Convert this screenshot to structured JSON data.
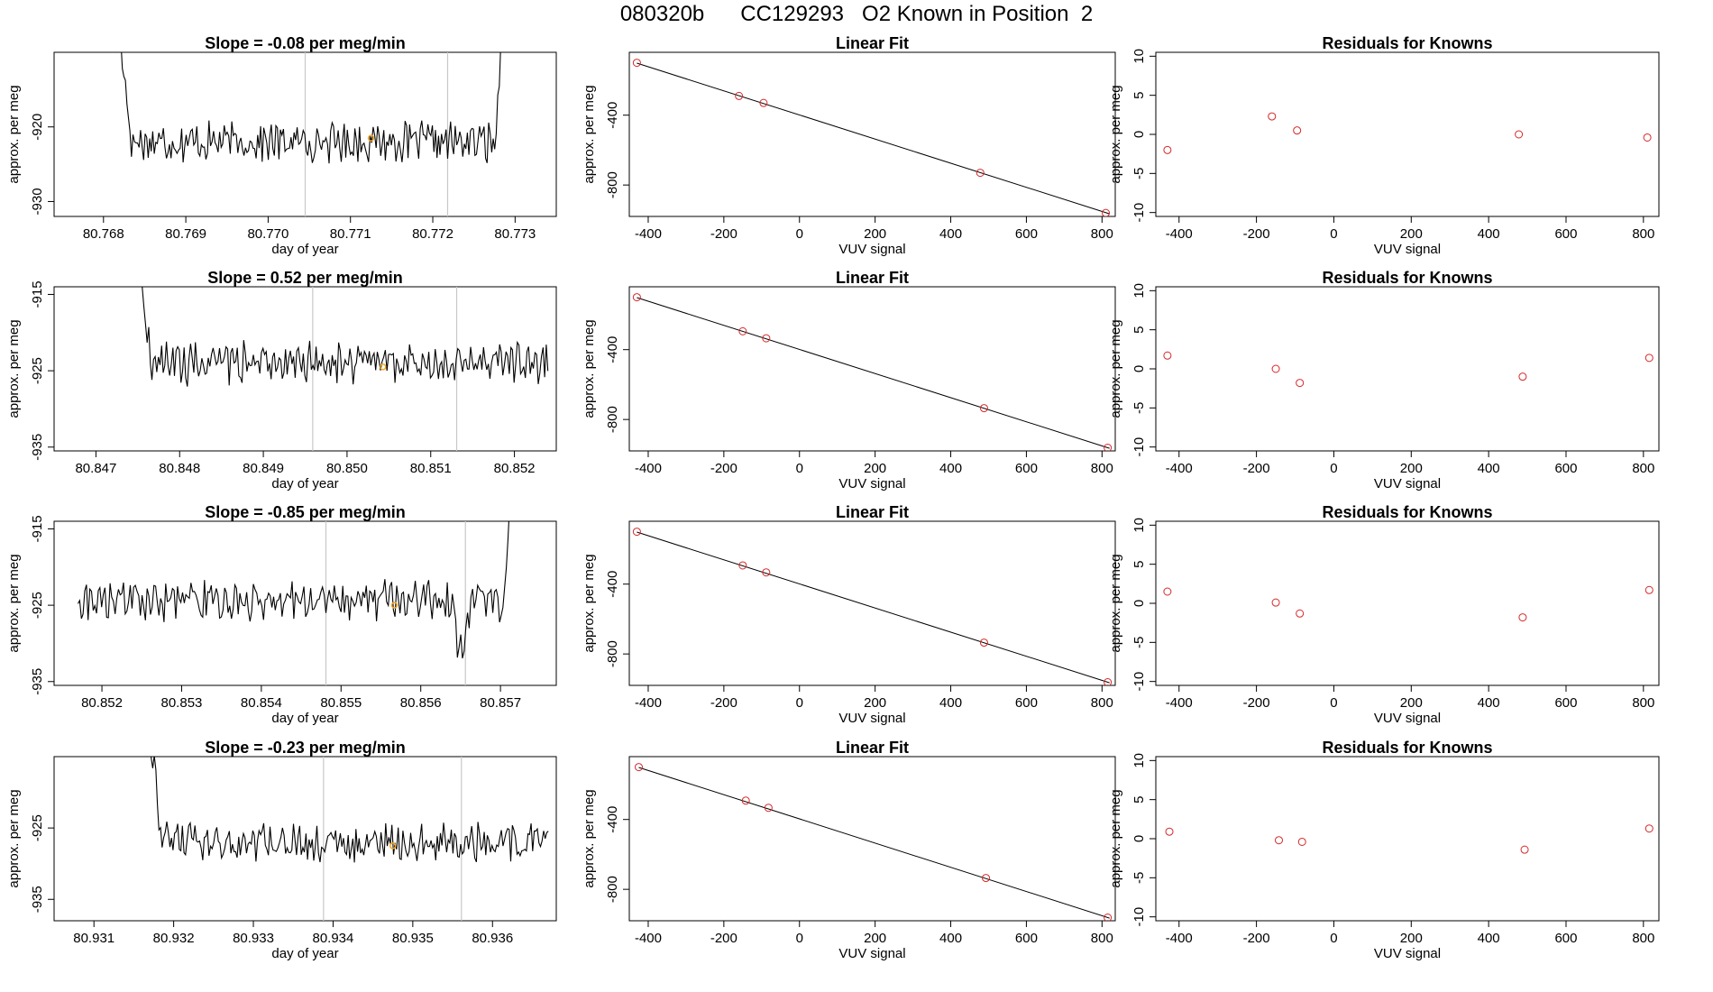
{
  "page": {
    "title": "080320b      CC129293   O2 Known in Position  2"
  },
  "colors": {
    "trace": "#000000",
    "fit_point": "#d62728",
    "highlight_point": "#f5a623",
    "interval_line": "#c8c8c8"
  },
  "chart_data": [
    {
      "type": "line",
      "panel": "time-series",
      "row": 1,
      "title": "Slope =  -0.08  per meg/min",
      "xlabel": "day of year",
      "ylabel": "approx. per meg",
      "x_ticks": [
        "80.768",
        "80.769",
        "80.770",
        "80.771",
        "80.772",
        "80.773"
      ],
      "x_tick_values": [
        80.768,
        80.769,
        80.77,
        80.771,
        80.772,
        80.773
      ],
      "y_ticks": [
        "-920",
        "-930"
      ],
      "y_tick_values": [
        -920,
        -930
      ],
      "xlim": [
        80.7674,
        80.7735
      ],
      "ylim": [
        -932,
        -910
      ],
      "interval_lines_x": [
        80.77045,
        80.77218
      ],
      "trace": {
        "x_start": 80.7681,
        "x_end": 80.7729,
        "level": -922,
        "noise": 2.2,
        "rise_left": true,
        "rise_right": true
      },
      "highlight_point": {
        "x": 80.77125,
        "y": -921.5
      }
    },
    {
      "type": "scatter",
      "panel": "linear-fit",
      "row": 1,
      "title": "Linear Fit",
      "xlabel": "VUV signal",
      "ylabel": "approx. per meg",
      "x_ticks": [
        "-400",
        "-200",
        "0",
        "200",
        "400",
        "600",
        "800"
      ],
      "x_tick_values": [
        -400,
        -200,
        0,
        200,
        400,
        600,
        800
      ],
      "y_ticks": [
        "-400",
        "-800"
      ],
      "y_tick_values": [
        -400,
        -800
      ],
      "xlim": [
        -450,
        835
      ],
      "ylim": [
        -980,
        -40
      ],
      "points": [
        {
          "x": -430,
          "y": -100
        },
        {
          "x": -160,
          "y": -290
        },
        {
          "x": -95,
          "y": -330
        },
        {
          "x": 478,
          "y": -730
        },
        {
          "x": 810,
          "y": -960
        }
      ],
      "fit_line": {
        "x": [
          -430,
          820
        ],
        "y": [
          -102,
          -965
        ]
      }
    },
    {
      "type": "scatter",
      "panel": "residuals",
      "row": 1,
      "title": "Residuals for Knowns",
      "xlabel": "VUV signal",
      "ylabel": "approx. per meg",
      "x_ticks": [
        "-400",
        "-200",
        "0",
        "200",
        "400",
        "600",
        "800"
      ],
      "x_tick_values": [
        -400,
        -200,
        0,
        200,
        400,
        600,
        800
      ],
      "y_ticks": [
        "10",
        "5",
        "0",
        "-5",
        "-10"
      ],
      "y_tick_values": [
        10,
        5,
        0,
        -5,
        -10
      ],
      "xlim": [
        -460,
        840
      ],
      "ylim": [
        -10.5,
        10.5
      ],
      "points": [
        {
          "x": -430,
          "y": -2.0
        },
        {
          "x": -160,
          "y": 2.3
        },
        {
          "x": -95,
          "y": 0.5
        },
        {
          "x": 478,
          "y": 0.0
        },
        {
          "x": 810,
          "y": -0.4
        }
      ]
    },
    {
      "type": "line",
      "panel": "time-series",
      "row": 2,
      "title": "Slope =  0.52  per meg/min",
      "xlabel": "day of year",
      "ylabel": "approx. per meg",
      "x_ticks": [
        "80.847",
        "80.848",
        "80.849",
        "80.850",
        "80.851",
        "80.852"
      ],
      "x_tick_values": [
        80.847,
        80.848,
        80.849,
        80.85,
        80.851,
        80.852
      ],
      "y_ticks": [
        "-915",
        "-925",
        "-935"
      ],
      "y_tick_values": [
        -915,
        -925,
        -935
      ],
      "xlim": [
        80.8465,
        80.8525
      ],
      "ylim": [
        -935.5,
        -914
      ],
      "interval_lines_x": [
        80.84959,
        80.85131
      ],
      "trace": {
        "x_start": 80.8474,
        "x_end": 80.8524,
        "level": -924,
        "noise": 2.3,
        "rise_left": true,
        "rise_right": false
      },
      "highlight_point": {
        "x": 80.85043,
        "y": -924.5
      }
    },
    {
      "type": "scatter",
      "panel": "linear-fit",
      "row": 2,
      "title": "Linear Fit",
      "xlabel": "VUV signal",
      "ylabel": "approx. per meg",
      "x_ticks": [
        "-400",
        "-200",
        "0",
        "200",
        "400",
        "600",
        "800"
      ],
      "x_tick_values": [
        -400,
        -200,
        0,
        200,
        400,
        600,
        800
      ],
      "y_ticks": [
        "-400",
        "-800"
      ],
      "y_tick_values": [
        -400,
        -800
      ],
      "xlim": [
        -450,
        835
      ],
      "ylim": [
        -980,
        -40
      ],
      "points": [
        {
          "x": -430,
          "y": -100
        },
        {
          "x": -150,
          "y": -295
        },
        {
          "x": -88,
          "y": -335
        },
        {
          "x": 488,
          "y": -735
        },
        {
          "x": 815,
          "y": -962
        }
      ],
      "fit_line": {
        "x": [
          -430,
          820
        ],
        "y": [
          -102,
          -965
        ]
      }
    },
    {
      "type": "scatter",
      "panel": "residuals",
      "row": 2,
      "title": "Residuals for Knowns",
      "xlabel": "VUV signal",
      "ylabel": "approx. per meg",
      "x_ticks": [
        "-400",
        "-200",
        "0",
        "200",
        "400",
        "600",
        "800"
      ],
      "x_tick_values": [
        -400,
        -200,
        0,
        200,
        400,
        600,
        800
      ],
      "y_ticks": [
        "10",
        "5",
        "0",
        "-5",
        "-10"
      ],
      "y_tick_values": [
        10,
        5,
        0,
        -5,
        -10
      ],
      "xlim": [
        -460,
        840
      ],
      "ylim": [
        -10.5,
        10.5
      ],
      "points": [
        {
          "x": -430,
          "y": 1.7
        },
        {
          "x": -150,
          "y": 0.0
        },
        {
          "x": -88,
          "y": -1.8
        },
        {
          "x": 488,
          "y": -1.0
        },
        {
          "x": 815,
          "y": 1.4
        }
      ]
    },
    {
      "type": "line",
      "panel": "time-series",
      "row": 3,
      "title": "Slope =  -0.85  per meg/min",
      "xlabel": "day of year",
      "ylabel": "approx. per meg",
      "x_ticks": [
        "80.852",
        "80.853",
        "80.854",
        "80.855",
        "80.856",
        "80.857"
      ],
      "x_tick_values": [
        80.852,
        80.853,
        80.854,
        80.855,
        80.856,
        80.857
      ],
      "y_ticks": [
        "-915",
        "-925",
        "-935"
      ],
      "y_tick_values": [
        -915,
        -925,
        -935
      ],
      "xlim": [
        80.8514,
        80.8577
      ],
      "ylim": [
        -935.5,
        -914
      ],
      "interval_lines_x": [
        80.85481,
        80.85656
      ],
      "trace": {
        "x_start": 80.8517,
        "x_end": 80.8572,
        "level": -924.5,
        "noise": 2.2,
        "rise_left": false,
        "rise_right": true,
        "dip_at": 80.8565
      },
      "highlight_point": {
        "x": 80.85567,
        "y": -925
      }
    },
    {
      "type": "scatter",
      "panel": "linear-fit",
      "row": 3,
      "title": "Linear Fit",
      "xlabel": "VUV signal",
      "ylabel": "approx. per meg",
      "x_ticks": [
        "-400",
        "-200",
        "0",
        "200",
        "400",
        "600",
        "800"
      ],
      "x_tick_values": [
        -400,
        -200,
        0,
        200,
        400,
        600,
        800
      ],
      "y_ticks": [
        "-400",
        "-800"
      ],
      "y_tick_values": [
        -400,
        -800
      ],
      "xlim": [
        -450,
        835
      ],
      "ylim": [
        -980,
        -40
      ],
      "points": [
        {
          "x": -430,
          "y": -100
        },
        {
          "x": -150,
          "y": -293
        },
        {
          "x": -88,
          "y": -333
        },
        {
          "x": 488,
          "y": -735
        },
        {
          "x": 815,
          "y": -962
        }
      ],
      "fit_line": {
        "x": [
          -430,
          820
        ],
        "y": [
          -102,
          -965
        ]
      }
    },
    {
      "type": "scatter",
      "panel": "residuals",
      "row": 3,
      "title": "Residuals for Knowns",
      "xlabel": "VUV signal",
      "ylabel": "approx. per meg",
      "x_ticks": [
        "-400",
        "-200",
        "0",
        "200",
        "400",
        "600",
        "800"
      ],
      "x_tick_values": [
        -400,
        -200,
        0,
        200,
        400,
        600,
        800
      ],
      "y_ticks": [
        "10",
        "5",
        "0",
        "-5",
        "-10"
      ],
      "y_tick_values": [
        10,
        5,
        0,
        -5,
        -10
      ],
      "xlim": [
        -460,
        840
      ],
      "ylim": [
        -10.5,
        10.5
      ],
      "points": [
        {
          "x": -430,
          "y": 1.5
        },
        {
          "x": -150,
          "y": 0.1
        },
        {
          "x": -88,
          "y": -1.3
        },
        {
          "x": 488,
          "y": -1.8
        },
        {
          "x": 815,
          "y": 1.7
        }
      ]
    },
    {
      "type": "line",
      "panel": "time-series",
      "row": 4,
      "title": "Slope =  -0.23  per meg/min",
      "xlabel": "day of year",
      "ylabel": "approx. per meg",
      "x_ticks": [
        "80.931",
        "80.932",
        "80.933",
        "80.934",
        "80.935",
        "80.936"
      ],
      "x_tick_values": [
        80.931,
        80.932,
        80.933,
        80.934,
        80.935,
        80.936
      ],
      "y_ticks": [
        "-925",
        "-935"
      ],
      "y_tick_values": [
        -925,
        -935
      ],
      "xlim": [
        80.9305,
        80.9368
      ],
      "ylim": [
        -938,
        -915
      ],
      "interval_lines_x": [
        80.93388,
        80.93561
      ],
      "trace": {
        "x_start": 80.9316,
        "x_end": 80.9367,
        "level": -927,
        "noise": 2.3,
        "rise_left": true,
        "rise_right": false
      },
      "highlight_point": {
        "x": 80.93475,
        "y": -927.5
      }
    },
    {
      "type": "scatter",
      "panel": "linear-fit",
      "row": 4,
      "title": "Linear Fit",
      "xlabel": "VUV signal",
      "ylabel": "approx. per meg",
      "x_ticks": [
        "-400",
        "-200",
        "0",
        "200",
        "400",
        "600",
        "800"
      ],
      "x_tick_values": [
        -400,
        -200,
        0,
        200,
        400,
        600,
        800
      ],
      "y_ticks": [
        "-400",
        "-800"
      ],
      "y_tick_values": [
        -400,
        -800
      ],
      "xlim": [
        -450,
        835
      ],
      "ylim": [
        -980,
        -40
      ],
      "points": [
        {
          "x": -425,
          "y": -100
        },
        {
          "x": -142,
          "y": -292
        },
        {
          "x": -82,
          "y": -333
        },
        {
          "x": 493,
          "y": -735
        },
        {
          "x": 815,
          "y": -962
        }
      ],
      "fit_line": {
        "x": [
          -425,
          820
        ],
        "y": [
          -102,
          -965
        ]
      }
    },
    {
      "type": "scatter",
      "panel": "residuals",
      "row": 4,
      "title": "Residuals for Knowns",
      "xlabel": "VUV signal",
      "ylabel": "approx. per meg",
      "x_ticks": [
        "-400",
        "-200",
        "0",
        "200",
        "400",
        "600",
        "800"
      ],
      "x_tick_values": [
        -400,
        -200,
        0,
        200,
        400,
        600,
        800
      ],
      "y_ticks": [
        "10",
        "5",
        "0",
        "-5",
        "-10"
      ],
      "y_tick_values": [
        10,
        5,
        0,
        -5,
        -10
      ],
      "xlim": [
        -460,
        840
      ],
      "ylim": [
        -10.5,
        10.5
      ],
      "points": [
        {
          "x": -425,
          "y": 0.9
        },
        {
          "x": -142,
          "y": -0.2
        },
        {
          "x": -82,
          "y": -0.4
        },
        {
          "x": 493,
          "y": -1.4
        },
        {
          "x": 815,
          "y": 1.3
        }
      ]
    }
  ]
}
